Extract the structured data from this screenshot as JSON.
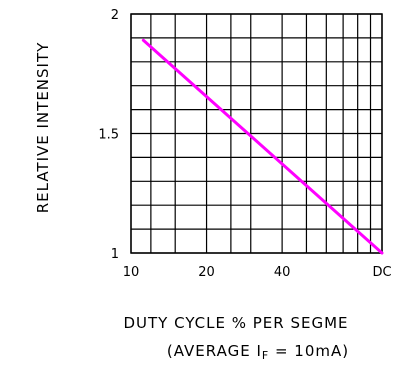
{
  "chart_data": {
    "type": "line",
    "ylabel": "RELATIVE INTENSITY",
    "xlabel_line1": "DUTY CYCLE % PER SEGME",
    "xlabel_line2_prefix": "(AVERAGE ",
    "xlabel_line2_symbol": "I",
    "xlabel_line2_subscript": "F",
    "xlabel_line2_suffix": " = 10mA)",
    "x_scale": "log",
    "xlim": [
      10,
      100
    ],
    "ylim": [
      1,
      2
    ],
    "x_tick_labels": [
      {
        "value": 10,
        "label": "10"
      },
      {
        "value": 20,
        "label": "20"
      },
      {
        "value": 40,
        "label": "40"
      },
      {
        "value": 100,
        "label": "DC"
      }
    ],
    "y_tick_labels": [
      {
        "value": 2,
        "label": "2"
      },
      {
        "value": 1.5,
        "label": "1.5"
      },
      {
        "value": 1,
        "label": "1"
      }
    ],
    "x_gridlines": [
      10,
      12,
      15,
      20,
      25,
      30,
      40,
      50,
      60,
      70,
      80,
      90,
      100
    ],
    "y_gridlines": [
      1.0,
      1.1,
      1.2,
      1.3,
      1.4,
      1.5,
      1.6,
      1.7,
      1.8,
      1.9,
      2.0
    ],
    "grid": true,
    "series": [
      {
        "color": "#ff00ff",
        "x": [
          11.2,
          100
        ],
        "y": [
          1.89,
          1.0
        ]
      }
    ]
  }
}
